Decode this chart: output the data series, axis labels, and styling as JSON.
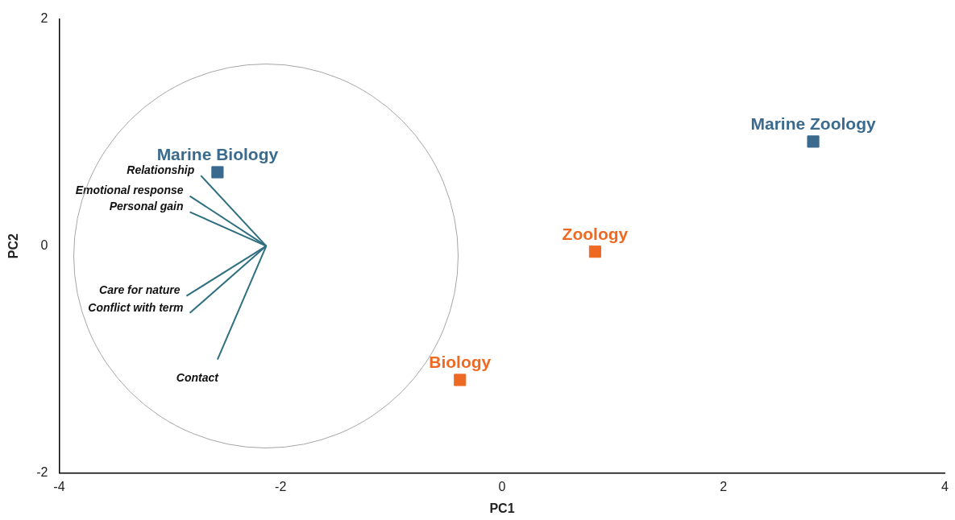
{
  "chart_data": {
    "type": "scatter",
    "xlabel": "PC1",
    "ylabel": "PC2",
    "xlim": [
      -4,
      4
    ],
    "ylim": [
      -2,
      2
    ],
    "xticks": [
      -4,
      -2,
      0,
      2,
      4
    ],
    "yticks": [
      -2,
      0,
      2
    ],
    "grid": false,
    "legend": false,
    "marker": "square",
    "series": [
      {
        "type": "line",
        "marker": "none",
        "name": "Relationship",
        "color": "#2f6f80",
        "x": [
          -2.13,
          -2.72
        ],
        "values": [
          0,
          0.62
        ]
      },
      {
        "type": "line",
        "marker": "none",
        "name": "Emotional response",
        "color": "#2f6f80",
        "x": [
          -2.13,
          -2.82
        ],
        "values": [
          0,
          0.44
        ]
      },
      {
        "type": "line",
        "marker": "none",
        "name": "Personal gain",
        "color": "#2f6f80",
        "x": [
          -2.13,
          -2.82
        ],
        "values": [
          0,
          0.3
        ]
      },
      {
        "type": "line",
        "marker": "none",
        "name": "Care for nature",
        "color": "#2f6f80",
        "x": [
          -2.13,
          -2.85
        ],
        "values": [
          0,
          -0.44
        ]
      },
      {
        "type": "line",
        "marker": "none",
        "name": "Conflict with term",
        "color": "#2f6f80",
        "x": [
          -2.13,
          -2.82
        ],
        "values": [
          0,
          -0.59
        ]
      },
      {
        "type": "line",
        "marker": "none",
        "name": "Contact",
        "color": "#2f6f80",
        "x": [
          -2.13,
          -2.57
        ],
        "values": [
          0,
          -1.0
        ]
      },
      {
        "name": "Marine Biology",
        "color": "#3a6a8d",
        "x": [
          -2.57
        ],
        "values": [
          0.65
        ]
      },
      {
        "name": "Marine Zoology",
        "color": "#3a6a8d",
        "x": [
          2.81
        ],
        "values": [
          0.92
        ]
      },
      {
        "name": "Zoology",
        "color": "#ee6a22",
        "x": [
          0.84
        ],
        "values": [
          -0.05
        ]
      },
      {
        "name": "Biology",
        "color": "#ee6a22",
        "x": [
          -0.38
        ],
        "values": [
          -1.18
        ]
      }
    ]
  }
}
